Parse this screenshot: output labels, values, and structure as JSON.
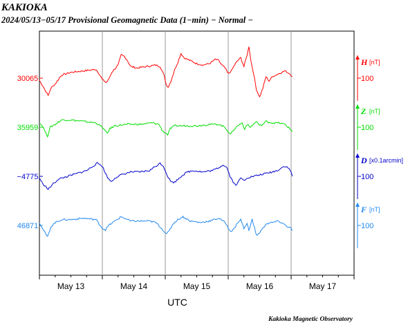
{
  "header": {
    "title": "KAKIOKA",
    "subtitle": "2024/05/13−05/17  Provisional Geomagnetic Data (1−min)  − Normal −"
  },
  "footer": {
    "credit": "Kakioka Magnetic Observatory"
  },
  "chart_data": {
    "type": "line",
    "title": "KAKIOKA",
    "subtitle": "2024/05/13−05/17  Provisional Geomagnetic Data (1−min)  − Normal −",
    "xlabel": "UTC",
    "x_ticks": [
      "May 13",
      "May 14",
      "May 15",
      "May 16",
      "May 17"
    ],
    "x_range_days": [
      0,
      5
    ],
    "grid": true,
    "series": [
      {
        "name": "H",
        "unit": "[nT]",
        "color": "#ff0000",
        "baseline_label": "30065",
        "scale_label": "100",
        "values": [
          [
            0.0,
            -8
          ],
          [
            0.05,
            -25
          ],
          [
            0.1,
            -45
          ],
          [
            0.14,
            -60
          ],
          [
            0.18,
            -35
          ],
          [
            0.25,
            -20
          ],
          [
            0.35,
            10
          ],
          [
            0.5,
            20
          ],
          [
            0.7,
            25
          ],
          [
            0.9,
            30
          ],
          [
            0.95,
            15
          ],
          [
            1.0,
            -5
          ],
          [
            1.06,
            -15
          ],
          [
            1.1,
            -5
          ],
          [
            1.15,
            20
          ],
          [
            1.25,
            45
          ],
          [
            1.3,
            80
          ],
          [
            1.35,
            75
          ],
          [
            1.4,
            60
          ],
          [
            1.45,
            40
          ],
          [
            1.55,
            35
          ],
          [
            1.7,
            40
          ],
          [
            1.85,
            45
          ],
          [
            1.92,
            40
          ],
          [
            1.98,
            10
          ],
          [
            2.02,
            -25
          ],
          [
            2.05,
            -30
          ],
          [
            2.09,
            -10
          ],
          [
            2.15,
            30
          ],
          [
            2.2,
            55
          ],
          [
            2.25,
            85
          ],
          [
            2.3,
            70
          ],
          [
            2.4,
            60
          ],
          [
            2.5,
            50
          ],
          [
            2.6,
            45
          ],
          [
            2.7,
            50
          ],
          [
            2.8,
            65
          ],
          [
            2.85,
            60
          ],
          [
            2.9,
            45
          ],
          [
            2.95,
            35
          ],
          [
            3.0,
            15
          ],
          [
            3.05,
            25
          ],
          [
            3.1,
            45
          ],
          [
            3.15,
            60
          ],
          [
            3.2,
            70
          ],
          [
            3.25,
            40
          ],
          [
            3.3,
            80
          ],
          [
            3.33,
            110
          ],
          [
            3.36,
            60
          ],
          [
            3.4,
            20
          ],
          [
            3.45,
            -40
          ],
          [
            3.5,
            -65
          ],
          [
            3.55,
            -35
          ],
          [
            3.6,
            5
          ],
          [
            3.65,
            -10
          ],
          [
            3.7,
            5
          ],
          [
            3.8,
            15
          ],
          [
            3.9,
            25
          ],
          [
            3.98,
            15
          ],
          [
            4.02,
            5
          ]
        ]
      },
      {
        "name": "Z",
        "unit": "[nT]",
        "color": "#00dd00",
        "baseline_label": "35959",
        "scale_label": "100",
        "values": [
          [
            0.0,
            15
          ],
          [
            0.05,
            5
          ],
          [
            0.1,
            -20
          ],
          [
            0.13,
            -30
          ],
          [
            0.17,
            0
          ],
          [
            0.25,
            10
          ],
          [
            0.35,
            25
          ],
          [
            0.5,
            25
          ],
          [
            0.7,
            20
          ],
          [
            0.9,
            15
          ],
          [
            1.0,
            0
          ],
          [
            1.05,
            -15
          ],
          [
            1.08,
            -20
          ],
          [
            1.12,
            -5
          ],
          [
            1.2,
            5
          ],
          [
            1.4,
            10
          ],
          [
            1.6,
            10
          ],
          [
            1.8,
            15
          ],
          [
            1.9,
            10
          ],
          [
            1.95,
            -10
          ],
          [
            2.0,
            -20
          ],
          [
            2.04,
            -25
          ],
          [
            2.08,
            -5
          ],
          [
            2.15,
            5
          ],
          [
            2.3,
            5
          ],
          [
            2.5,
            5
          ],
          [
            2.7,
            10
          ],
          [
            2.85,
            10
          ],
          [
            2.95,
            0
          ],
          [
            3.0,
            -15
          ],
          [
            3.04,
            -25
          ],
          [
            3.08,
            -10
          ],
          [
            3.15,
            5
          ],
          [
            3.22,
            15
          ],
          [
            3.26,
            -5
          ],
          [
            3.3,
            10
          ],
          [
            3.35,
            0
          ],
          [
            3.4,
            10
          ],
          [
            3.45,
            20
          ],
          [
            3.5,
            5
          ],
          [
            3.55,
            10
          ],
          [
            3.6,
            20
          ],
          [
            3.7,
            15
          ],
          [
            3.8,
            15
          ],
          [
            3.9,
            10
          ],
          [
            3.98,
            -5
          ],
          [
            4.02,
            -15
          ]
        ]
      },
      {
        "name": "D",
        "unit": "[x0.1arcmin]",
        "color": "#0000cc",
        "baseline_label": "−4775",
        "scale_label": "100",
        "values": [
          [
            0.0,
            -5
          ],
          [
            0.05,
            -25
          ],
          [
            0.1,
            -35
          ],
          [
            0.14,
            -45
          ],
          [
            0.2,
            -30
          ],
          [
            0.3,
            -10
          ],
          [
            0.45,
            0
          ],
          [
            0.6,
            10
          ],
          [
            0.75,
            20
          ],
          [
            0.85,
            35
          ],
          [
            0.92,
            45
          ],
          [
            0.97,
            40
          ],
          [
            1.0,
            35
          ],
          [
            1.05,
            10
          ],
          [
            1.1,
            -10
          ],
          [
            1.15,
            -18
          ],
          [
            1.2,
            -5
          ],
          [
            1.3,
            5
          ],
          [
            1.45,
            15
          ],
          [
            1.6,
            15
          ],
          [
            1.75,
            20
          ],
          [
            1.85,
            35
          ],
          [
            1.92,
            45
          ],
          [
            1.97,
            35
          ],
          [
            2.02,
            10
          ],
          [
            2.05,
            -5
          ],
          [
            2.1,
            -20
          ],
          [
            2.15,
            -20
          ],
          [
            2.25,
            0
          ],
          [
            2.35,
            15
          ],
          [
            2.45,
            20
          ],
          [
            2.6,
            15
          ],
          [
            2.75,
            20
          ],
          [
            2.85,
            30
          ],
          [
            2.92,
            40
          ],
          [
            2.98,
            30
          ],
          [
            3.03,
            0
          ],
          [
            3.08,
            -20
          ],
          [
            3.12,
            -30
          ],
          [
            3.16,
            -20
          ],
          [
            3.2,
            -5
          ],
          [
            3.25,
            -15
          ],
          [
            3.3,
            -5
          ],
          [
            3.4,
            0
          ],
          [
            3.5,
            5
          ],
          [
            3.6,
            10
          ],
          [
            3.7,
            15
          ],
          [
            3.78,
            20
          ],
          [
            3.85,
            30
          ],
          [
            3.9,
            35
          ],
          [
            3.95,
            30
          ],
          [
            4.0,
            15
          ],
          [
            4.02,
            0
          ]
        ]
      },
      {
        "name": "F",
        "unit": "[nT]",
        "color": "#2288ee",
        "baseline_label": "46871",
        "scale_label": "100",
        "values": [
          [
            0.0,
            10
          ],
          [
            0.05,
            -10
          ],
          [
            0.1,
            -30
          ],
          [
            0.13,
            -40
          ],
          [
            0.18,
            -5
          ],
          [
            0.25,
            10
          ],
          [
            0.35,
            20
          ],
          [
            0.5,
            20
          ],
          [
            0.7,
            25
          ],
          [
            0.9,
            20
          ],
          [
            0.95,
            5
          ],
          [
            1.0,
            -10
          ],
          [
            1.05,
            -15
          ],
          [
            1.1,
            0
          ],
          [
            1.2,
            15
          ],
          [
            1.3,
            30
          ],
          [
            1.35,
            25
          ],
          [
            1.45,
            15
          ],
          [
            1.6,
            15
          ],
          [
            1.75,
            15
          ],
          [
            1.85,
            10
          ],
          [
            1.92,
            -5
          ],
          [
            1.98,
            -20
          ],
          [
            2.02,
            -30
          ],
          [
            2.06,
            -20
          ],
          [
            2.12,
            5
          ],
          [
            2.2,
            20
          ],
          [
            2.28,
            30
          ],
          [
            2.4,
            15
          ],
          [
            2.55,
            10
          ],
          [
            2.7,
            15
          ],
          [
            2.85,
            25
          ],
          [
            2.92,
            15
          ],
          [
            2.97,
            5
          ],
          [
            3.0,
            -10
          ],
          [
            3.05,
            -20
          ],
          [
            3.1,
            -10
          ],
          [
            3.15,
            10
          ],
          [
            3.2,
            20
          ],
          [
            3.25,
            -10
          ],
          [
            3.3,
            5
          ],
          [
            3.33,
            -15
          ],
          [
            3.38,
            20
          ],
          [
            3.42,
            -10
          ],
          [
            3.45,
            -35
          ],
          [
            3.5,
            -25
          ],
          [
            3.55,
            -10
          ],
          [
            3.6,
            5
          ],
          [
            3.7,
            10
          ],
          [
            3.8,
            15
          ],
          [
            3.88,
            5
          ],
          [
            3.95,
            -5
          ],
          [
            4.0,
            -10
          ],
          [
            4.02,
            -18
          ]
        ]
      }
    ]
  }
}
